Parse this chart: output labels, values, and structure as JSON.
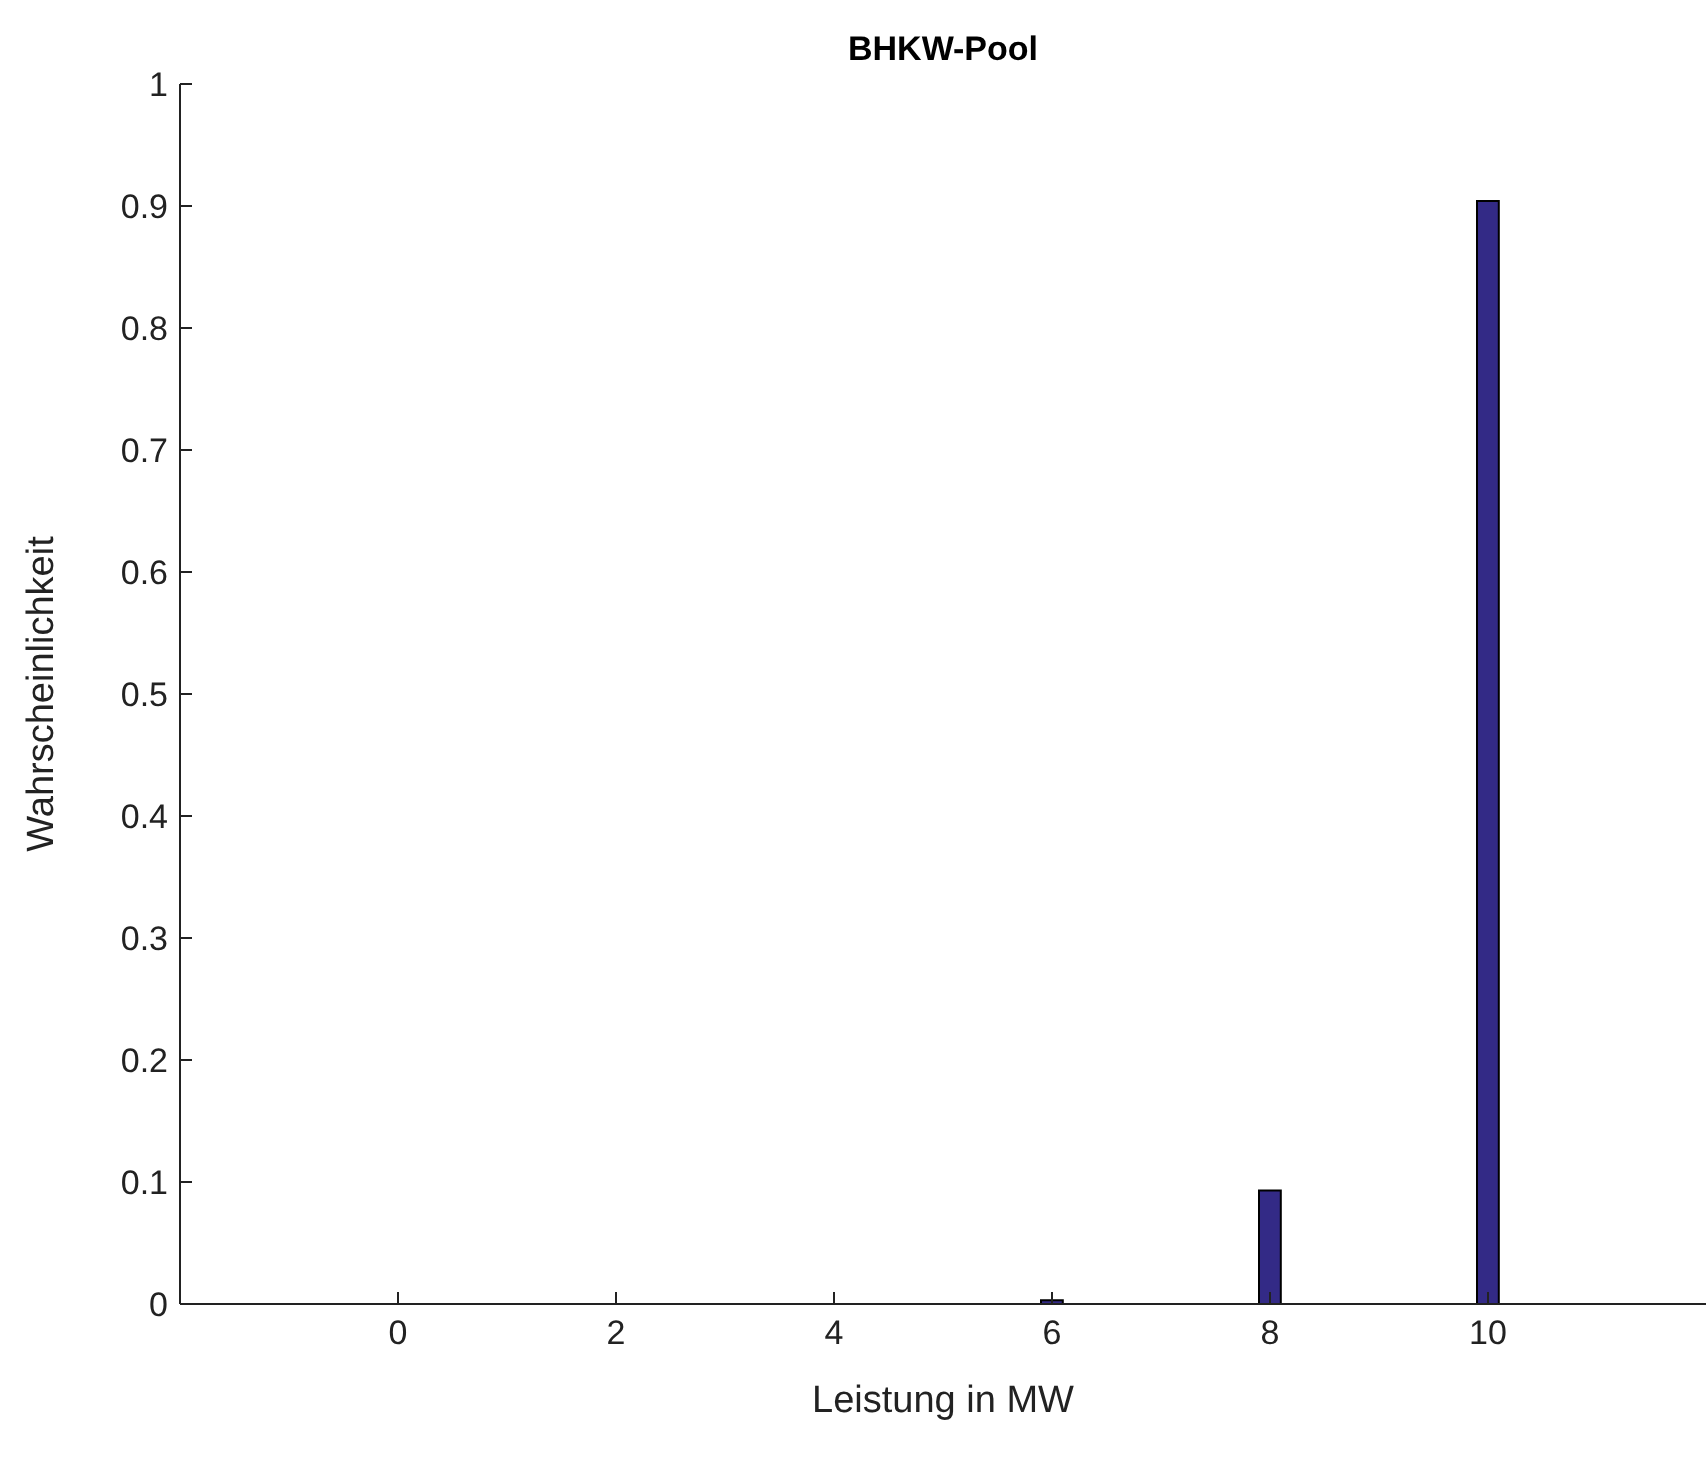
{
  "chart_data": {
    "type": "bar",
    "title": "BHKW-Pool",
    "xlabel": "Leistung in MW",
    "ylabel": "Wahrscheinlichkeit",
    "x": [
      6,
      8,
      10
    ],
    "values": [
      0.003,
      0.093,
      0.904
    ],
    "color": "#332a86",
    "xlim": [
      -2,
      12
    ],
    "xticks": [
      0,
      2,
      4,
      6,
      8,
      10
    ],
    "ylim": [
      0,
      1
    ],
    "yticks": [
      0,
      0.1,
      0.2,
      0.3,
      0.4,
      0.5,
      0.6,
      0.7,
      0.8,
      0.9,
      1
    ],
    "grid": false,
    "legend": false
  }
}
